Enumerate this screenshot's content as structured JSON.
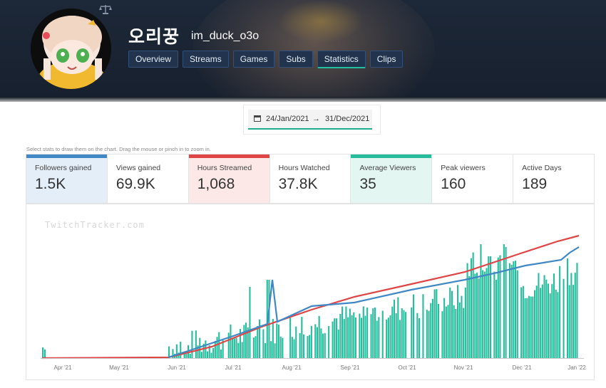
{
  "profile": {
    "display_name": "오리꿍",
    "login": "im_duck_o3o"
  },
  "icons": {
    "scales": "scales-icon",
    "calendar": "calendar-icon"
  },
  "nav": {
    "tabs": [
      "Overview",
      "Streams",
      "Games",
      "Subs",
      "Statistics",
      "Clips"
    ],
    "active": "Statistics"
  },
  "date_range": {
    "from": "24/Jan/2021",
    "arrow": "→",
    "to": "31/Dec/2021"
  },
  "hint": "Select stats to draw them on the chart. Drag the mouse or pinch in to zoom in.",
  "stats": [
    {
      "label": "Followers gained",
      "value": "1.5K",
      "selected": true,
      "color": "#3f88c5"
    },
    {
      "label": "Views gained",
      "value": "69.9K",
      "selected": false,
      "color": ""
    },
    {
      "label": "Hours Streamed",
      "value": "1,068",
      "selected": true,
      "color": "#e04545"
    },
    {
      "label": "Hours Watched",
      "value": "37.8K",
      "selected": false,
      "color": ""
    },
    {
      "label": "Average Viewers",
      "value": "35",
      "selected": true,
      "color": "#27bc9c"
    },
    {
      "label": "Peak viewers",
      "value": "160",
      "selected": false,
      "color": ""
    },
    {
      "label": "Active Days",
      "value": "189",
      "selected": false,
      "color": ""
    }
  ],
  "watermark": "TwitchTracker.com",
  "chart_data": {
    "type": "bar",
    "x_tick_labels": [
      "Apr '21",
      "May '21",
      "Jun '21",
      "Jul '21",
      "Aug '21",
      "Sep '21",
      "Oct '21",
      "Nov '21",
      "Dec '21",
      "Jan '22"
    ],
    "series": [
      {
        "name": "Average Viewers",
        "type": "bar",
        "color": "#27bc9c"
      },
      {
        "name": "Hours Streamed",
        "type": "line",
        "color": "#e04545"
      },
      {
        "name": "Followers gained",
        "type": "line",
        "color": "#3f88c5"
      }
    ],
    "grid": false,
    "legend": "none"
  }
}
